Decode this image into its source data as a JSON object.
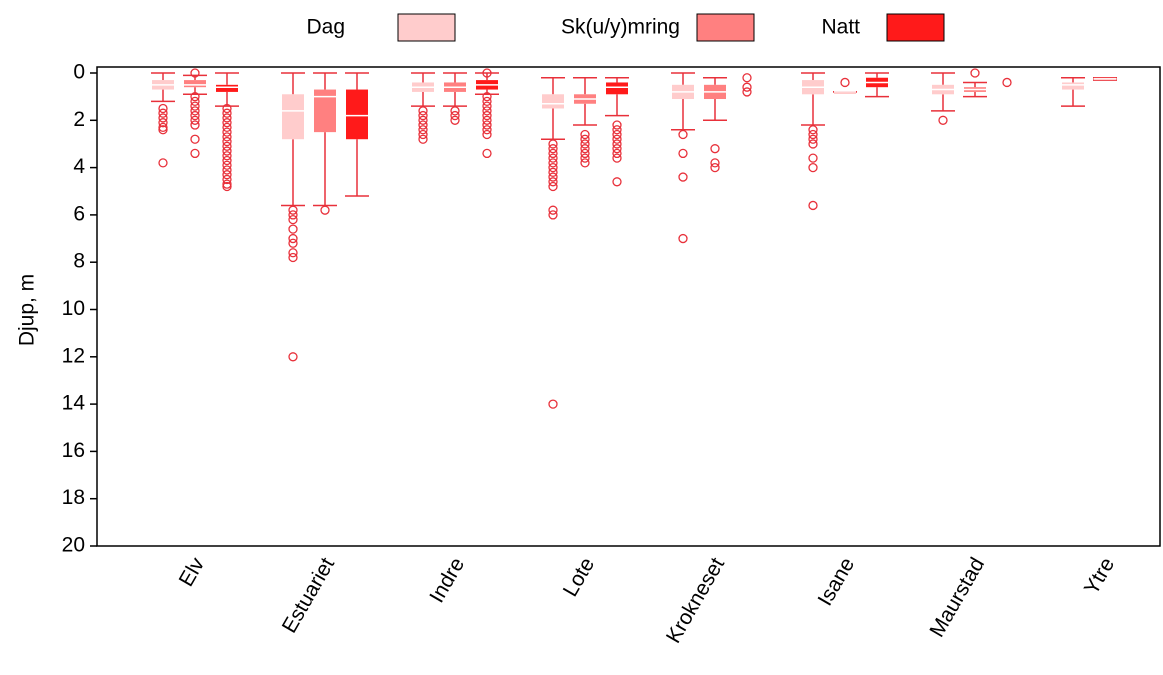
{
  "chart_data": {
    "type": "box",
    "y_label": "Djup, m",
    "ylim": [
      0,
      20
    ],
    "yticks": [
      0,
      2,
      4,
      6,
      8,
      10,
      12,
      14,
      16,
      18,
      20
    ],
    "y_inverted": true,
    "line_color": "#e8303a",
    "categories": [
      "Elv",
      "Estuariet",
      "Indre",
      "Lote",
      "Krokneset",
      "Isane",
      "Maurstad",
      "Ytre"
    ],
    "series": [
      {
        "name": "Dag",
        "color": "#ffcccc",
        "boxes": [
          {
            "whisker_low": 0,
            "q1": 0.3,
            "median": 0.5,
            "q3": 0.7,
            "whisker_high": 1.2,
            "outliers": [
              1.5,
              1.7,
              1.9,
              2.1,
              2.3,
              2.4,
              3.8
            ]
          },
          {
            "whisker_low": 0,
            "q1": 0.9,
            "median": 1.6,
            "q3": 2.8,
            "whisker_high": 5.6,
            "outliers": [
              5.8,
              6.0,
              6.2,
              6.6,
              7.0,
              7.2,
              7.6,
              7.8,
              12.0
            ]
          },
          {
            "whisker_low": 0,
            "q1": 0.4,
            "median": 0.6,
            "q3": 0.8,
            "whisker_high": 1.4,
            "outliers": [
              1.6,
              1.8,
              2.0,
              2.2,
              2.4,
              2.6,
              2.8
            ]
          },
          {
            "whisker_low": 0.2,
            "q1": 0.9,
            "median": 1.3,
            "q3": 1.5,
            "whisker_high": 2.8,
            "outliers": [
              3.0,
              3.2,
              3.4,
              3.6,
              3.8,
              4.0,
              4.2,
              4.4,
              4.6,
              4.8,
              5.8,
              6.0,
              14.0
            ]
          },
          {
            "whisker_low": 0,
            "q1": 0.5,
            "median": 0.8,
            "q3": 1.1,
            "whisker_high": 2.4,
            "outliers": [
              2.6,
              3.4,
              4.4,
              7.0
            ]
          },
          {
            "whisker_low": 0,
            "q1": 0.3,
            "median": 0.6,
            "q3": 0.9,
            "whisker_high": 2.2,
            "outliers": [
              2.4,
              2.6,
              2.8,
              3.0,
              3.6,
              4.0,
              5.6
            ]
          },
          {
            "whisker_low": 0,
            "q1": 0.5,
            "median": 0.7,
            "q3": 0.9,
            "whisker_high": 1.6,
            "outliers": [
              2.0
            ]
          },
          {
            "whisker_low": 0.2,
            "q1": 0.4,
            "median": 0.5,
            "q3": 0.7,
            "whisker_high": 1.4,
            "outliers": []
          }
        ]
      },
      {
        "name": "Sk(u/y)mring",
        "color": "#ff8080",
        "boxes": [
          {
            "whisker_low": 0.1,
            "q1": 0.3,
            "median": 0.5,
            "q3": 0.6,
            "whisker_high": 0.9,
            "outliers": [
              0.0,
              1.0,
              1.2,
              1.4,
              1.6,
              1.8,
              2.0,
              2.2,
              2.8,
              3.4
            ]
          },
          {
            "whisker_low": 0,
            "q1": 0.7,
            "median": 1.0,
            "q3": 2.5,
            "whisker_high": 5.6,
            "outliers": [
              5.8
            ]
          },
          {
            "whisker_low": 0,
            "q1": 0.4,
            "median": 0.6,
            "q3": 0.8,
            "whisker_high": 1.4,
            "outliers": [
              1.6,
              1.8,
              2.0
            ]
          },
          {
            "whisker_low": 0.2,
            "q1": 0.9,
            "median": 1.1,
            "q3": 1.3,
            "whisker_high": 2.2,
            "outliers": [
              2.6,
              2.8,
              3.0,
              3.2,
              3.4,
              3.6,
              3.8
            ]
          },
          {
            "whisker_low": 0.2,
            "q1": 0.5,
            "median": 0.8,
            "q3": 1.1,
            "whisker_high": 2.0,
            "outliers": [
              3.2,
              3.8,
              4.0
            ]
          },
          {
            "whisker_low": 0.8,
            "q1": 0.8,
            "median": 0.8,
            "q3": 0.8,
            "whisker_high": 0.8,
            "outliers": [
              0.4
            ]
          },
          {
            "whisker_low": 0.4,
            "q1": 0.6,
            "median": 0.7,
            "q3": 0.8,
            "whisker_high": 1.0,
            "outliers": [
              0.0
            ]
          },
          {
            "whisker_low": 0.2,
            "q1": 0.2,
            "median": 0.25,
            "q3": 0.3,
            "whisker_high": 0.3,
            "outliers": []
          }
        ]
      },
      {
        "name": "Natt",
        "color": "#ff1a1a",
        "boxes": [
          {
            "whisker_low": 0,
            "q1": 0.5,
            "median": 0.6,
            "q3": 0.8,
            "whisker_high": 1.4,
            "outliers": [
              1.5,
              1.7,
              1.9,
              2.1,
              2.3,
              2.5,
              2.7,
              2.9,
              3.1,
              3.3,
              3.5,
              3.7,
              3.9,
              4.1,
              4.3,
              4.5,
              4.7,
              4.8
            ]
          },
          {
            "whisker_low": 0,
            "q1": 0.7,
            "median": 1.8,
            "q3": 2.8,
            "whisker_high": 5.2,
            "outliers": []
          },
          {
            "whisker_low": 0,
            "q1": 0.3,
            "median": 0.5,
            "q3": 0.7,
            "whisker_high": 0.9,
            "outliers": [
              0.0,
              1.0,
              1.2,
              1.4,
              1.6,
              1.8,
              2.0,
              2.2,
              2.4,
              2.6,
              3.4
            ]
          },
          {
            "whisker_low": 0.2,
            "q1": 0.4,
            "median": 0.6,
            "q3": 0.9,
            "whisker_high": 1.8,
            "outliers": [
              2.2,
              2.4,
              2.6,
              2.8,
              3.0,
              3.2,
              3.4,
              3.6,
              4.6
            ]
          },
          {
            "whisker_low": null,
            "q1": null,
            "median": null,
            "q3": null,
            "whisker_high": null,
            "outliers": [
              0.2,
              0.6,
              0.8
            ]
          },
          {
            "whisker_low": 0,
            "q1": 0.2,
            "median": 0.4,
            "q3": 0.6,
            "whisker_high": 1.0,
            "outliers": []
          },
          {
            "whisker_low": null,
            "q1": null,
            "median": null,
            "q3": null,
            "whisker_high": null,
            "outliers": [
              0.4
            ]
          },
          null
        ]
      }
    ]
  }
}
